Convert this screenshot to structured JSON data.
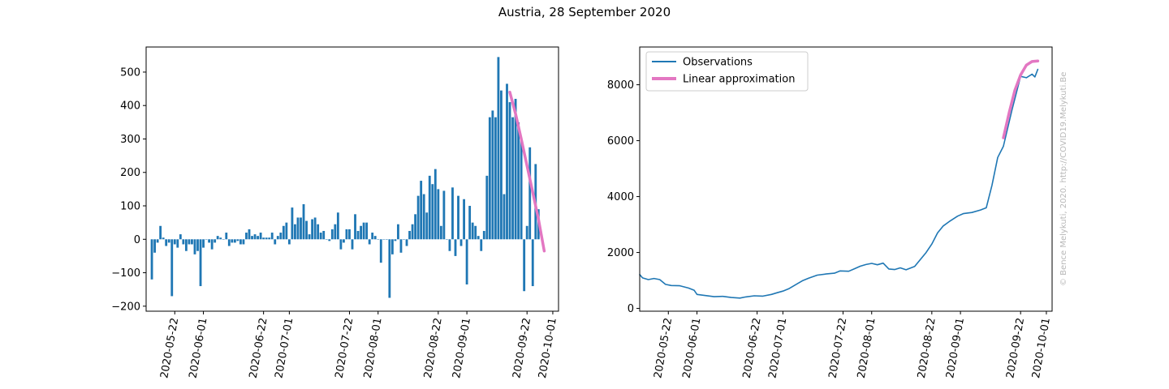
{
  "figure": {
    "title": "Austria, 28 September 2020",
    "watermark": "© Bence Melykuti, 2020. http://COVID19.Melykuti.Be"
  },
  "colors": {
    "observations": "#1f77b4",
    "approximation": "#e377c2",
    "axis": "#000000",
    "watermark": "#b8b8b8"
  },
  "chart_data": [
    {
      "type": "bar",
      "title": "",
      "xlabel": "",
      "ylabel": "",
      "x_range": [
        "2020-05-12",
        "2020-10-03"
      ],
      "ylim": [
        -215,
        575
      ],
      "yticks": [
        -200,
        -100,
        0,
        100,
        200,
        300,
        400,
        500
      ],
      "xticks": [
        "2020-05-22",
        "2020-06-01",
        "2020-06-22",
        "2020-07-01",
        "2020-07-22",
        "2020-08-01",
        "2020-08-22",
        "2020-09-01",
        "2020-09-22",
        "2020-10-01"
      ],
      "grid": false,
      "bars": {
        "start_date": "2020-05-14",
        "values": [
          -120,
          -40,
          -10,
          40,
          5,
          -20,
          -10,
          -170,
          -15,
          -25,
          15,
          -15,
          -35,
          -15,
          -15,
          -45,
          -35,
          -140,
          -25,
          0,
          -10,
          -30,
          -10,
          10,
          5,
          0,
          20,
          -20,
          -10,
          -10,
          -5,
          -15,
          -15,
          20,
          30,
          10,
          15,
          10,
          20,
          5,
          5,
          5,
          20,
          -15,
          10,
          20,
          40,
          50,
          -15,
          95,
          45,
          65,
          65,
          105,
          55,
          15,
          60,
          65,
          45,
          20,
          25,
          0,
          -5,
          30,
          45,
          80,
          -30,
          -10,
          30,
          30,
          -30,
          75,
          25,
          40,
          50,
          50,
          -15,
          20,
          10,
          0,
          -70,
          0,
          0,
          -175,
          -45,
          -5,
          45,
          -40,
          0,
          -20,
          25,
          45,
          75,
          130,
          175,
          135,
          80,
          190,
          165,
          210,
          150,
          40,
          145,
          0,
          -35,
          155,
          -50,
          130,
          -20,
          120,
          -135,
          100,
          50,
          40,
          10,
          -35,
          25,
          190,
          365,
          385,
          365,
          545,
          445,
          135,
          465,
          410,
          365,
          420,
          350,
          295,
          -155,
          40,
          275,
          -140,
          225,
          90
        ]
      },
      "linear_approximation": {
        "name": "Linear approximation",
        "points": [
          [
            "2020-09-16",
            440
          ],
          [
            "2020-09-18",
            375
          ],
          [
            "2020-09-20",
            300
          ],
          [
            "2020-09-22",
            220
          ],
          [
            "2020-09-24",
            140
          ],
          [
            "2020-09-26",
            60
          ],
          [
            "2020-09-28",
            -35
          ]
        ]
      }
    },
    {
      "type": "line",
      "title": "",
      "xlabel": "",
      "ylabel": "",
      "x_range": [
        "2020-05-12",
        "2020-10-03"
      ],
      "ylim": [
        -100,
        9350
      ],
      "yticks": [
        0,
        2000,
        4000,
        6000,
        8000
      ],
      "xticks": [
        "2020-05-22",
        "2020-06-01",
        "2020-06-22",
        "2020-07-01",
        "2020-07-22",
        "2020-08-01",
        "2020-08-22",
        "2020-09-01",
        "2020-09-22",
        "2020-10-01"
      ],
      "grid": false,
      "legend": {
        "placement": "upper-left",
        "entries": [
          "Observations",
          "Linear approximation"
        ]
      },
      "series": [
        {
          "name": "Observations",
          "points": [
            [
              "2020-05-12",
              1210
            ],
            [
              "2020-05-13",
              1090
            ],
            [
              "2020-05-15",
              1030
            ],
            [
              "2020-05-17",
              1070
            ],
            [
              "2020-05-19",
              1030
            ],
            [
              "2020-05-21",
              860
            ],
            [
              "2020-05-23",
              820
            ],
            [
              "2020-05-26",
              810
            ],
            [
              "2020-05-29",
              730
            ],
            [
              "2020-05-31",
              650
            ],
            [
              "2020-06-01",
              500
            ],
            [
              "2020-06-04",
              460
            ],
            [
              "2020-06-07",
              420
            ],
            [
              "2020-06-10",
              430
            ],
            [
              "2020-06-13",
              390
            ],
            [
              "2020-06-16",
              370
            ],
            [
              "2020-06-18",
              410
            ],
            [
              "2020-06-21",
              450
            ],
            [
              "2020-06-24",
              440
            ],
            [
              "2020-06-27",
              500
            ],
            [
              "2020-06-29",
              560
            ],
            [
              "2020-07-01",
              620
            ],
            [
              "2020-07-03",
              700
            ],
            [
              "2020-07-06",
              880
            ],
            [
              "2020-07-08",
              1000
            ],
            [
              "2020-07-10",
              1080
            ],
            [
              "2020-07-13",
              1190
            ],
            [
              "2020-07-16",
              1230
            ],
            [
              "2020-07-19",
              1260
            ],
            [
              "2020-07-21",
              1340
            ],
            [
              "2020-07-24",
              1330
            ],
            [
              "2020-07-26",
              1420
            ],
            [
              "2020-07-28",
              1510
            ],
            [
              "2020-07-30",
              1570
            ],
            [
              "2020-08-01",
              1610
            ],
            [
              "2020-08-03",
              1560
            ],
            [
              "2020-08-05",
              1620
            ],
            [
              "2020-08-07",
              1410
            ],
            [
              "2020-08-09",
              1390
            ],
            [
              "2020-08-11",
              1450
            ],
            [
              "2020-08-13",
              1380
            ],
            [
              "2020-08-16",
              1500
            ],
            [
              "2020-08-18",
              1750
            ],
            [
              "2020-08-20",
              2000
            ],
            [
              "2020-08-22",
              2300
            ],
            [
              "2020-08-24",
              2700
            ],
            [
              "2020-08-26",
              2950
            ],
            [
              "2020-08-28",
              3100
            ],
            [
              "2020-08-31",
              3300
            ],
            [
              "2020-09-02",
              3390
            ],
            [
              "2020-09-05",
              3430
            ],
            [
              "2020-09-08",
              3520
            ],
            [
              "2020-09-10",
              3600
            ],
            [
              "2020-09-12",
              4400
            ],
            [
              "2020-09-14",
              5400
            ],
            [
              "2020-09-16",
              5800
            ],
            [
              "2020-09-19",
              7100
            ],
            [
              "2020-09-22",
              8300
            ],
            [
              "2020-09-24",
              8250
            ],
            [
              "2020-09-26",
              8380
            ],
            [
              "2020-09-27",
              8280
            ],
            [
              "2020-09-28",
              8550
            ]
          ]
        },
        {
          "name": "Linear approximation",
          "points": [
            [
              "2020-09-16",
              6100
            ],
            [
              "2020-09-18",
              7000
            ],
            [
              "2020-09-20",
              7800
            ],
            [
              "2020-09-22",
              8350
            ],
            [
              "2020-09-24",
              8700
            ],
            [
              "2020-09-26",
              8830
            ],
            [
              "2020-09-28",
              8850
            ]
          ]
        }
      ]
    }
  ]
}
